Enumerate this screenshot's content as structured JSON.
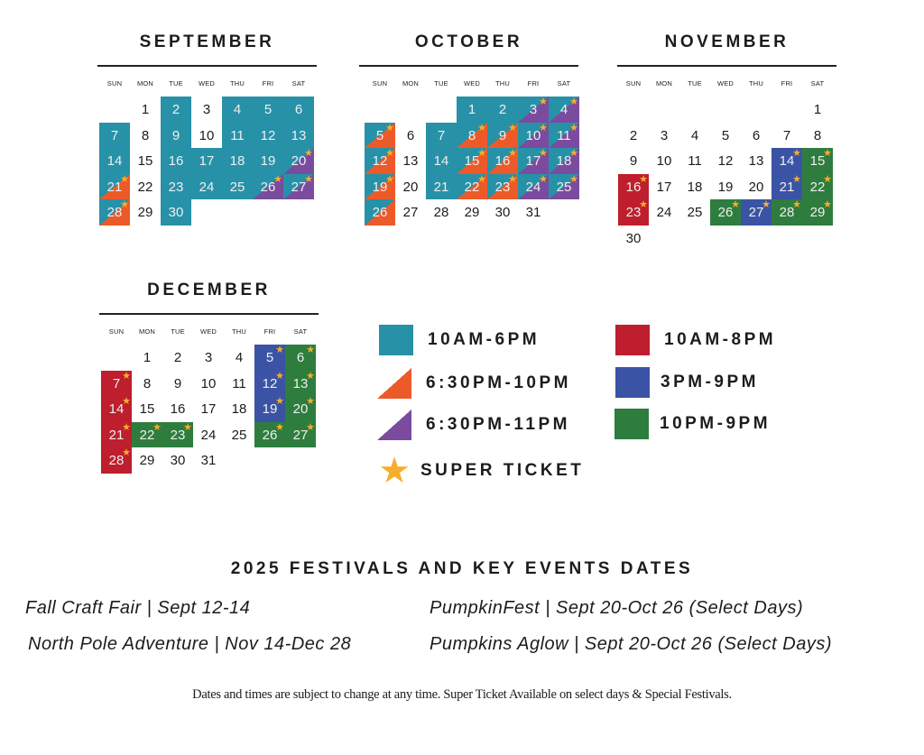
{
  "colors": {
    "teal": "#2791a8",
    "orange": "#ec5a29",
    "purple": "#7a4b9e",
    "red": "#be1e2d",
    "blue": "#3b53a4",
    "green": "#2e7d3e",
    "star": "#f6ae2d"
  },
  "weekdays": [
    "SUN",
    "MON",
    "TUE",
    "WED",
    "THU",
    "FRI",
    "SAT"
  ],
  "months": [
    {
      "name": "SEPTEMBER",
      "first_weekday": 1,
      "days": [
        {
          "day": 1
        },
        {
          "day": 2,
          "slot": "teal"
        },
        {
          "day": 3
        },
        {
          "day": 4,
          "slot": "teal"
        },
        {
          "day": 5,
          "slot": "teal"
        },
        {
          "day": 6,
          "slot": "teal"
        },
        {
          "day": 7,
          "slot": "teal"
        },
        {
          "day": 8
        },
        {
          "day": 9,
          "slot": "teal"
        },
        {
          "day": 10
        },
        {
          "day": 11,
          "slot": "teal"
        },
        {
          "day": 12,
          "slot": "teal"
        },
        {
          "day": 13,
          "slot": "teal"
        },
        {
          "day": 14,
          "slot": "teal"
        },
        {
          "day": 15
        },
        {
          "day": 16,
          "slot": "teal"
        },
        {
          "day": 17,
          "slot": "teal"
        },
        {
          "day": 18,
          "slot": "teal"
        },
        {
          "day": 19,
          "slot": "teal"
        },
        {
          "day": 20,
          "slot": "teal-purple",
          "star": true
        },
        {
          "day": 21,
          "slot": "teal-orange",
          "star": true
        },
        {
          "day": 22
        },
        {
          "day": 23,
          "slot": "teal"
        },
        {
          "day": 24,
          "slot": "teal"
        },
        {
          "day": 25,
          "slot": "teal"
        },
        {
          "day": 26,
          "slot": "teal-purple",
          "star": true
        },
        {
          "day": 27,
          "slot": "teal-purple",
          "star": true
        },
        {
          "day": 28,
          "slot": "teal-orange",
          "star": true
        },
        {
          "day": 29
        },
        {
          "day": 30,
          "slot": "teal"
        }
      ]
    },
    {
      "name": "OCTOBER",
      "first_weekday": 3,
      "days": [
        {
          "day": 1,
          "slot": "teal"
        },
        {
          "day": 2,
          "slot": "teal"
        },
        {
          "day": 3,
          "slot": "teal-purple",
          "star": true
        },
        {
          "day": 4,
          "slot": "teal-purple",
          "star": true
        },
        {
          "day": 5,
          "slot": "teal-orange",
          "star": true
        },
        {
          "day": 6
        },
        {
          "day": 7,
          "slot": "teal"
        },
        {
          "day": 8,
          "slot": "teal-orange",
          "star": true
        },
        {
          "day": 9,
          "slot": "teal-orange",
          "star": true
        },
        {
          "day": 10,
          "slot": "teal-purple",
          "star": true
        },
        {
          "day": 11,
          "slot": "teal-purple",
          "star": true
        },
        {
          "day": 12,
          "slot": "teal-orange",
          "star": true
        },
        {
          "day": 13
        },
        {
          "day": 14,
          "slot": "teal"
        },
        {
          "day": 15,
          "slot": "teal-orange",
          "star": true
        },
        {
          "day": 16,
          "slot": "teal-orange",
          "star": true
        },
        {
          "day": 17,
          "slot": "teal-purple",
          "star": true
        },
        {
          "day": 18,
          "slot": "teal-purple",
          "star": true
        },
        {
          "day": 19,
          "slot": "teal-orange",
          "star": true
        },
        {
          "day": 20
        },
        {
          "day": 21,
          "slot": "teal"
        },
        {
          "day": 22,
          "slot": "teal-orange",
          "star": true
        },
        {
          "day": 23,
          "slot": "teal-orange",
          "star": true
        },
        {
          "day": 24,
          "slot": "teal-purple",
          "star": true
        },
        {
          "day": 25,
          "slot": "teal-purple",
          "star": true
        },
        {
          "day": 26,
          "slot": "teal-orange"
        },
        {
          "day": 27
        },
        {
          "day": 28
        },
        {
          "day": 29
        },
        {
          "day": 30
        },
        {
          "day": 31
        }
      ]
    },
    {
      "name": "NOVEMBER",
      "first_weekday": 6,
      "days": [
        {
          "day": 1
        },
        {
          "day": 2
        },
        {
          "day": 3
        },
        {
          "day": 4
        },
        {
          "day": 5
        },
        {
          "day": 6
        },
        {
          "day": 7
        },
        {
          "day": 8
        },
        {
          "day": 9
        },
        {
          "day": 10
        },
        {
          "day": 11
        },
        {
          "day": 12
        },
        {
          "day": 13
        },
        {
          "day": 14,
          "slot": "blue",
          "star": true
        },
        {
          "day": 15,
          "slot": "green",
          "star": true
        },
        {
          "day": 16,
          "slot": "red",
          "star": true
        },
        {
          "day": 17
        },
        {
          "day": 18
        },
        {
          "day": 19
        },
        {
          "day": 20
        },
        {
          "day": 21,
          "slot": "blue",
          "star": true
        },
        {
          "day": 22,
          "slot": "green",
          "star": true
        },
        {
          "day": 23,
          "slot": "red",
          "star": true
        },
        {
          "day": 24
        },
        {
          "day": 25
        },
        {
          "day": 26,
          "slot": "green",
          "star": true
        },
        {
          "day": 27,
          "slot": "blue",
          "star": true
        },
        {
          "day": 28,
          "slot": "green",
          "star": true
        },
        {
          "day": 29,
          "slot": "green",
          "star": true
        },
        {
          "day": 30
        }
      ]
    },
    {
      "name": "DECEMBER",
      "first_weekday": 1,
      "days": [
        {
          "day": 1
        },
        {
          "day": 2
        },
        {
          "day": 3
        },
        {
          "day": 4
        },
        {
          "day": 5,
          "slot": "blue",
          "star": true
        },
        {
          "day": 6,
          "slot": "green",
          "star": true
        },
        {
          "day": 7,
          "slot": "red",
          "star": true
        },
        {
          "day": 8
        },
        {
          "day": 9
        },
        {
          "day": 10
        },
        {
          "day": 11
        },
        {
          "day": 12,
          "slot": "blue",
          "star": true
        },
        {
          "day": 13,
          "slot": "green",
          "star": true
        },
        {
          "day": 14,
          "slot": "red",
          "star": true
        },
        {
          "day": 15
        },
        {
          "day": 16
        },
        {
          "day": 17
        },
        {
          "day": 18
        },
        {
          "day": 19,
          "slot": "blue",
          "star": true
        },
        {
          "day": 20,
          "slot": "green",
          "star": true
        },
        {
          "day": 21,
          "slot": "red",
          "star": true
        },
        {
          "day": 22,
          "slot": "green",
          "star": true
        },
        {
          "day": 23,
          "slot": "green",
          "star": true
        },
        {
          "day": 24
        },
        {
          "day": 25
        },
        {
          "day": 26,
          "slot": "green",
          "star": true
        },
        {
          "day": 27,
          "slot": "green",
          "star": true
        },
        {
          "day": 28,
          "slot": "red",
          "star": true
        },
        {
          "day": 29
        },
        {
          "day": 30
        },
        {
          "day": 31
        }
      ]
    }
  ],
  "legend": {
    "teal": "10AM-6PM",
    "orange": "6:30PM-10PM",
    "purple": "6:30PM-11PM",
    "red": "10AM-8PM",
    "blue": "3PM-9PM",
    "green": "10PM-9PM",
    "star": "SUPER TICKET"
  },
  "festivals": {
    "title": "2025 FESTIVALS AND KEY EVENTS DATES",
    "items": [
      "Fall Craft Fair | Sept 12-14",
      "North Pole Adventure | Nov 14-Dec 28",
      "PumpkinFest | Sept 20-Oct 26 (Select Days)",
      "Pumpkins Aglow | Sept 20-Oct 26 (Select Days)"
    ]
  },
  "footer": "Dates and times are subject to change at any time. Super Ticket Available on select days & Special Festivals."
}
